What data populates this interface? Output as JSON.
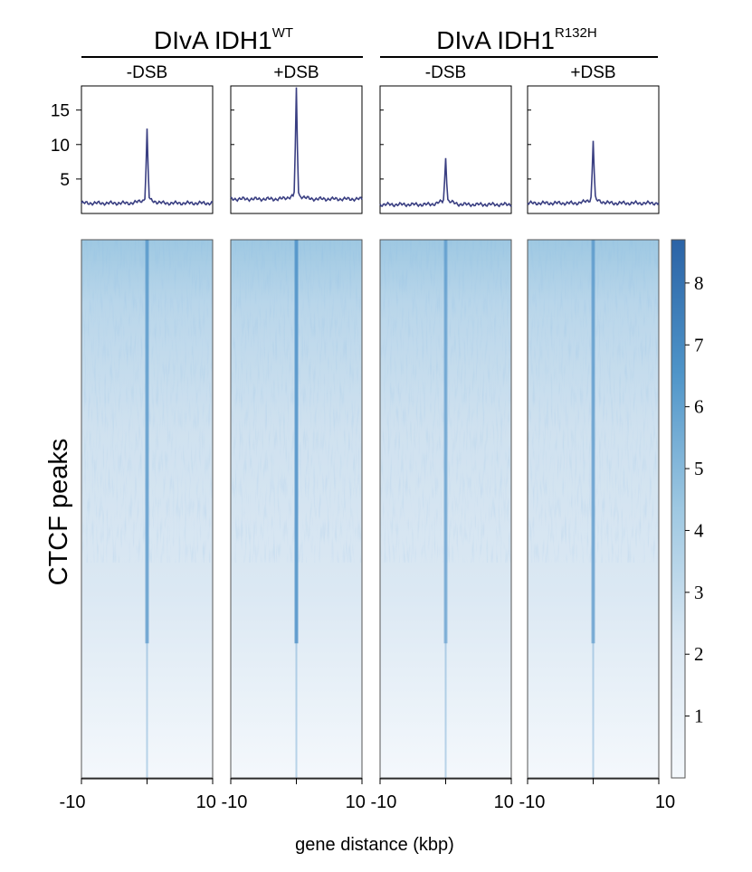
{
  "groups": [
    {
      "name": "DIvA IDH1",
      "sup": "WT"
    },
    {
      "name": "DIvA IDH1",
      "sup": "R132H"
    }
  ],
  "chart_data": {
    "type": "heatmap",
    "ylabel": "CTCF peaks",
    "xlabel": "gene distance (kbp)",
    "panels": [
      {
        "group": 0,
        "label": "-DSB",
        "baseline": 1.5,
        "peak": 11.6
      },
      {
        "group": 0,
        "label": "+DSB",
        "baseline": 2.1,
        "peak": 17.6
      },
      {
        "group": 1,
        "label": "-DSB",
        "baseline": 1.3,
        "peak": 7.7
      },
      {
        "group": 1,
        "label": "+DSB",
        "baseline": 1.5,
        "peak": 10.2
      }
    ],
    "profile": {
      "x_range": [
        -10,
        10
      ],
      "ylim": [
        0,
        18.5
      ],
      "yticks": [
        5,
        10,
        15
      ],
      "line_color": "#3a3f82"
    },
    "heatmap": {
      "x_range": [
        -10,
        10
      ],
      "xtick_labels": [
        "-10",
        "10 -10",
        "10 -10",
        "10 -10",
        "10"
      ],
      "colorscale": [
        "#f4f8fc",
        "#dbe8f3",
        "#9ec8e2",
        "#4f95c9",
        "#2b63a6"
      ],
      "vmin": 0,
      "vmax": 8.7,
      "colorbar_ticks": [
        "1",
        "2",
        "3",
        "4",
        "5",
        "6",
        "7",
        "8"
      ],
      "center_line_color": "#4b8fc7"
    }
  }
}
